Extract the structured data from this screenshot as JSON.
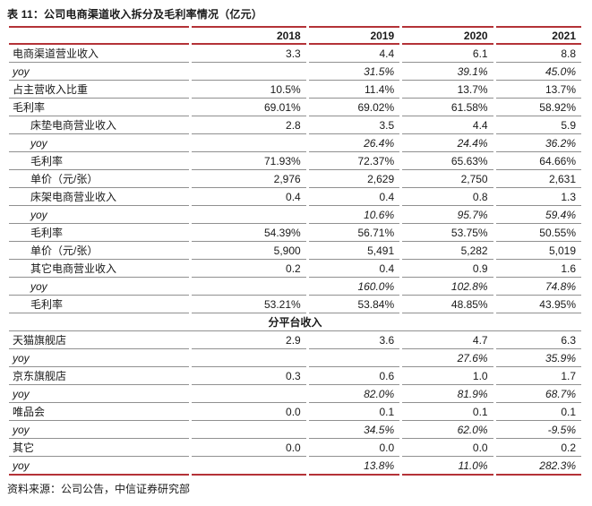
{
  "page": {
    "title": "表 11：公司电商渠道收入拆分及毛利率情况（亿元）",
    "source": "资料来源：公司公告，中信证券研究部"
  },
  "colors": {
    "accent_red": "#b43237",
    "row_line": "#909090",
    "text": "#1a1a1a"
  },
  "chart_data": {
    "type": "table",
    "title": "表 11：公司电商渠道收入拆分及毛利率情况（亿元）",
    "columns": [
      "2018",
      "2019",
      "2020",
      "2021"
    ],
    "rows": [
      {
        "label": "电商渠道营业收入",
        "indent": false,
        "italic": false,
        "section": false,
        "values": [
          "3.3",
          "4.4",
          "6.1",
          "8.8"
        ]
      },
      {
        "label": "yoy",
        "indent": false,
        "italic": true,
        "section": false,
        "values": [
          "",
          "31.5%",
          "39.1%",
          "45.0%"
        ]
      },
      {
        "label": "占主营收入比重",
        "indent": false,
        "italic": false,
        "section": false,
        "values": [
          "10.5%",
          "11.4%",
          "13.7%",
          "13.7%"
        ]
      },
      {
        "label": "毛利率",
        "indent": false,
        "italic": false,
        "section": false,
        "values": [
          "69.01%",
          "69.02%",
          "61.58%",
          "58.92%"
        ]
      },
      {
        "label": "床垫电商营业收入",
        "indent": true,
        "italic": false,
        "section": false,
        "values": [
          "2.8",
          "3.5",
          "4.4",
          "5.9"
        ]
      },
      {
        "label": "yoy",
        "indent": true,
        "italic": true,
        "section": false,
        "values": [
          "",
          "26.4%",
          "24.4%",
          "36.2%"
        ]
      },
      {
        "label": "毛利率",
        "indent": true,
        "italic": false,
        "section": false,
        "values": [
          "71.93%",
          "72.37%",
          "65.63%",
          "64.66%"
        ]
      },
      {
        "label": "单价（元/张）",
        "indent": true,
        "italic": false,
        "section": false,
        "values": [
          "2,976",
          "2,629",
          "2,750",
          "2,631"
        ]
      },
      {
        "label": "床架电商营业收入",
        "indent": true,
        "italic": false,
        "section": false,
        "values": [
          "0.4",
          "0.4",
          "0.8",
          "1.3"
        ]
      },
      {
        "label": "yoy",
        "indent": true,
        "italic": true,
        "section": false,
        "values": [
          "",
          "10.6%",
          "95.7%",
          "59.4%"
        ]
      },
      {
        "label": "毛利率",
        "indent": true,
        "italic": false,
        "section": false,
        "values": [
          "54.39%",
          "56.71%",
          "53.75%",
          "50.55%"
        ]
      },
      {
        "label": "单价（元/张）",
        "indent": true,
        "italic": false,
        "section": false,
        "values": [
          "5,900",
          "5,491",
          "5,282",
          "5,019"
        ]
      },
      {
        "label": "其它电商营业收入",
        "indent": true,
        "italic": false,
        "section": false,
        "values": [
          "0.2",
          "0.4",
          "0.9",
          "1.6"
        ]
      },
      {
        "label": "yoy",
        "indent": true,
        "italic": true,
        "section": false,
        "values": [
          "",
          "160.0%",
          "102.8%",
          "74.8%"
        ]
      },
      {
        "label": "毛利率",
        "indent": true,
        "italic": false,
        "section": false,
        "values": [
          "53.21%",
          "53.84%",
          "48.85%",
          "43.95%"
        ]
      },
      {
        "label": "分平台收入",
        "indent": false,
        "italic": false,
        "section": true,
        "values": []
      },
      {
        "label": "天猫旗舰店",
        "indent": false,
        "italic": false,
        "section": false,
        "values": [
          "2.9",
          "3.6",
          "4.7",
          "6.3"
        ]
      },
      {
        "label": "yoy",
        "indent": false,
        "italic": true,
        "section": false,
        "values": [
          "",
          "",
          "27.6%",
          "35.9%"
        ]
      },
      {
        "label": "京东旗舰店",
        "indent": false,
        "italic": false,
        "section": false,
        "values": [
          "0.3",
          "0.6",
          "1.0",
          "1.7"
        ]
      },
      {
        "label": "yoy",
        "indent": false,
        "italic": true,
        "section": false,
        "values": [
          "",
          "82.0%",
          "81.9%",
          "68.7%"
        ]
      },
      {
        "label": "唯品会",
        "indent": false,
        "italic": false,
        "section": false,
        "values": [
          "0.0",
          "0.1",
          "0.1",
          "0.1"
        ]
      },
      {
        "label": "yoy",
        "indent": false,
        "italic": true,
        "section": false,
        "values": [
          "",
          "34.5%",
          "62.0%",
          "-9.5%"
        ]
      },
      {
        "label": "其它",
        "indent": false,
        "italic": false,
        "section": false,
        "values": [
          "0.0",
          "0.0",
          "0.0",
          "0.2"
        ]
      },
      {
        "label": "yoy",
        "indent": false,
        "italic": true,
        "section": false,
        "values": [
          "",
          "13.8%",
          "11.0%",
          "282.3%"
        ]
      }
    ]
  }
}
